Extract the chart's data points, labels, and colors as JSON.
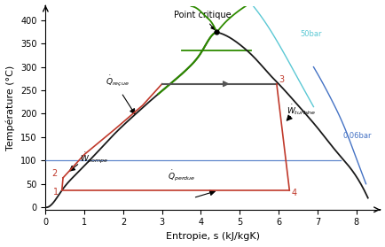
{
  "xlabel": "Entropie, s (kJ/kgK)",
  "ylabel": "Température (°C)",
  "xlim": [
    0.0,
    8.6
  ],
  "ylim": [
    -5,
    430
  ],
  "xticks": [
    0.0,
    1.0,
    2.0,
    3.0,
    4.0,
    5.0,
    6.0,
    7.0,
    8.0
  ],
  "yticks": [
    0,
    50,
    100,
    150,
    200,
    250,
    300,
    350,
    400
  ],
  "background_color": "#ffffff",
  "p1": [
    0.42,
    36.2
  ],
  "p2": [
    0.45,
    63.0
  ],
  "p3": [
    5.95,
    263.9
  ],
  "p4": [
    6.28,
    36.2
  ],
  "point_critique": [
    4.41,
    374.1
  ],
  "label_point_critique": "Point critique",
  "label_50bar": "50bar",
  "label_006bar": "0.06bar",
  "sat_dome_color": "#1a1a1a",
  "sat_green_top_color": "#2e8b00",
  "line50bar_color": "#5bc8d4",
  "line006bar_color": "#4472c4",
  "isobar_green_color": "#2e8b00",
  "cycle_red_color": "#c0392b",
  "boiler_line_color": "#555555",
  "condenser_line_color": "#4472c4",
  "arrow_color": "#1a1a1a"
}
